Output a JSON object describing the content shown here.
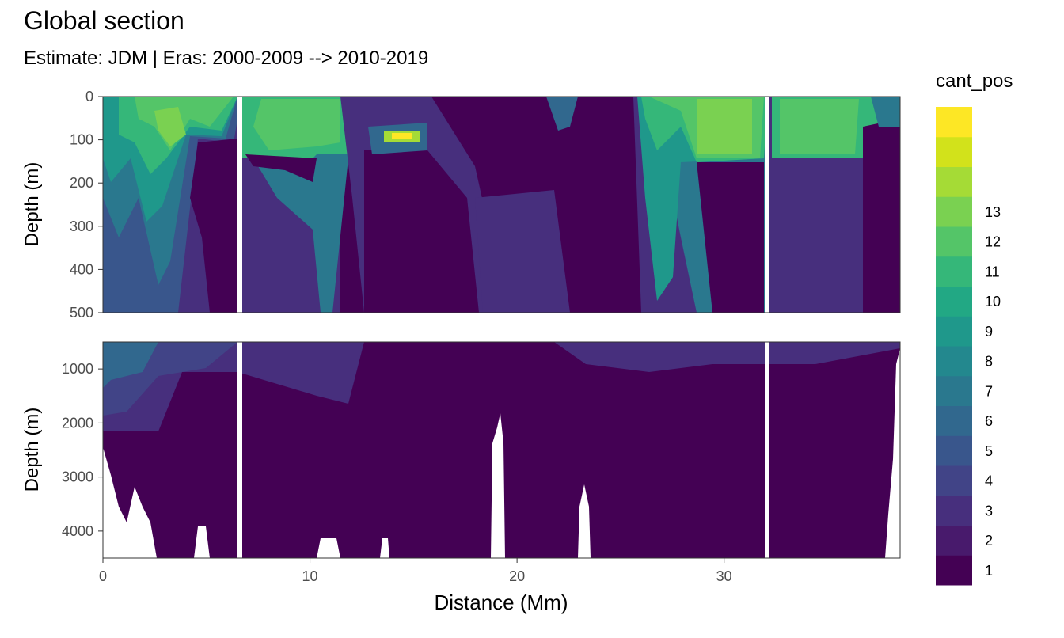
{
  "chart_data": {
    "type": "heatmap",
    "title": "Global section",
    "subtitle": "Estimate: JDM  | Eras: 2000-2009 --> 2010-2019",
    "xlabel": "Distance (Mm)",
    "ylabel": "Depth (m)",
    "x_ticks": [
      "0",
      "10",
      "20",
      "30"
    ],
    "xlim": [
      0,
      38.5
    ],
    "panels": [
      {
        "name": "upper",
        "ylim": [
          0,
          500
        ],
        "y_ticks": [
          "0",
          "100",
          "200",
          "300",
          "400",
          "500"
        ]
      },
      {
        "name": "lower",
        "ylim": [
          500,
          4500
        ],
        "y_ticks": [
          "1000",
          "2000",
          "3000",
          "4000"
        ]
      }
    ],
    "legend": {
      "title": "cant_pos",
      "placement": "right",
      "labels": [
        "1",
        "2",
        "3",
        "4",
        "5",
        "6",
        "7",
        "8",
        "9",
        "10",
        "11",
        "12",
        "13"
      ],
      "colors": [
        "#440154",
        "#481a6c",
        "#472f7d",
        "#414487",
        "#39568c",
        "#31688e",
        "#2a788e",
        "#23888e",
        "#1f988b",
        "#22a884",
        "#35b779",
        "#54c568",
        "#7ad151",
        "#a5db36",
        "#d2e21b",
        "#fde725"
      ]
    },
    "section_gaps_x": [
      6.6,
      32.1
    ],
    "description_free": true
  }
}
